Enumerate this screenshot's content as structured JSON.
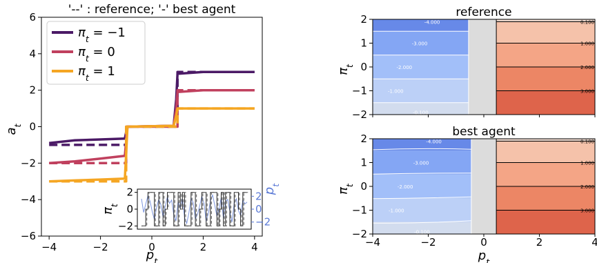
{
  "chart_data": [
    {
      "type": "line",
      "title": "'--' : reference; '-' best agent",
      "xlabel": "p_t",
      "ylabel": "a_t",
      "xlim": [
        -4.3,
        4.3
      ],
      "ylim": [
        -6,
        6
      ],
      "xticks": [
        "-4",
        "-2",
        "0",
        "2",
        "4"
      ],
      "yticks": [
        "-6",
        "-4",
        "-2",
        "0",
        "2",
        "4",
        "6"
      ],
      "legend_position": "top-left",
      "series": [
        {
          "name": "π_t = −1",
          "color": "#4b1a66",
          "best_agent": [
            [
              -4,
              -0.9
            ],
            [
              -3,
              -0.75
            ],
            [
              -2,
              -0.7
            ],
            [
              -1.05,
              -0.65
            ],
            [
              -1.0,
              -0.3
            ],
            [
              -0.95,
              0.0
            ],
            [
              0.85,
              0.05
            ],
            [
              0.95,
              1.5
            ],
            [
              1.0,
              2.9
            ],
            [
              2,
              3.0
            ],
            [
              4,
              3.0
            ]
          ],
          "reference": [
            [
              -4,
              -1.0
            ],
            [
              -1.0,
              -1.0
            ],
            [
              -1.0,
              0.0
            ],
            [
              1.0,
              0.0
            ],
            [
              1.0,
              3.0
            ],
            [
              4,
              3.0
            ]
          ]
        },
        {
          "name": "π_t = 0",
          "color": "#c0405e",
          "best_agent": [
            [
              -4,
              -2.0
            ],
            [
              -3,
              -1.9
            ],
            [
              -2,
              -1.75
            ],
            [
              -1.05,
              -1.6
            ],
            [
              -1.0,
              -0.8
            ],
            [
              -0.95,
              0.0
            ],
            [
              0.85,
              0.05
            ],
            [
              0.95,
              1.0
            ],
            [
              1.0,
              1.9
            ],
            [
              2,
              2.0
            ],
            [
              4,
              2.0
            ]
          ],
          "reference": [
            [
              -4,
              -2.0
            ],
            [
              -1.0,
              -2.0
            ],
            [
              -1.0,
              0.0
            ],
            [
              1.0,
              0.0
            ],
            [
              1.0,
              2.0
            ],
            [
              4,
              2.0
            ]
          ]
        },
        {
          "name": "π_t = 1",
          "color": "#f5a623",
          "best_agent": [
            [
              -4,
              -3.0
            ],
            [
              -3,
              -2.95
            ],
            [
              -2,
              -2.9
            ],
            [
              -1.05,
              -2.85
            ],
            [
              -1.0,
              -1.5
            ],
            [
              -0.95,
              0.0
            ],
            [
              0.85,
              0.05
            ],
            [
              0.95,
              0.6
            ],
            [
              1.0,
              1.0
            ],
            [
              2,
              1.0
            ],
            [
              4,
              1.0
            ]
          ],
          "reference": [
            [
              -4,
              -3.0
            ],
            [
              -1.0,
              -3.0
            ],
            [
              -1.0,
              0.0
            ],
            [
              1.0,
              0.0
            ],
            [
              1.0,
              1.0
            ],
            [
              4,
              1.0
            ]
          ]
        }
      ],
      "inset": {
        "left_label": "π_t",
        "right_label": "p_t",
        "left_ticks": [
          "-2",
          "0",
          "2"
        ],
        "right_ticks": [
          "-2",
          "0",
          "2"
        ],
        "left_ylim": [
          -2.3,
          2.3
        ],
        "right_ylim": [
          -3,
          3
        ],
        "right_color": "#5b7ad6",
        "position_series": [
          -2,
          -2,
          0,
          2,
          2,
          2,
          -2,
          -2,
          2,
          2,
          -2,
          0,
          2,
          2,
          2,
          -2,
          -2,
          2,
          0,
          2,
          -2,
          -2,
          -2,
          2,
          2,
          -2,
          -2,
          0,
          2,
          2,
          -2,
          -2,
          2,
          2,
          2,
          -2,
          0,
          2,
          -2,
          2,
          2,
          -2,
          -2,
          2,
          2,
          0,
          -2,
          2,
          2,
          2
        ],
        "price_series": [
          1.6,
          -0.5,
          0.8,
          2.1,
          1.2,
          -0.4,
          -1.6,
          0.3,
          1.5,
          0.7,
          -1.2,
          0.4,
          1.9,
          0.9,
          1.4,
          -0.9,
          -1.8,
          1.1,
          0.2,
          1.6,
          -1.3,
          -2.2,
          -0.6,
          1.7,
          1.0,
          -1.5,
          -0.8,
          0.5,
          2.0,
          0.9,
          -1.9,
          -0.7,
          1.3,
          2.2,
          0.6,
          -1.1,
          0.1,
          1.8,
          -1.4,
          1.2,
          1.5,
          -0.3,
          -2.0,
          0.9,
          1.6,
          -0.2,
          -1.0,
          1.4,
          0.8,
          1.1
        ]
      }
    },
    {
      "type": "heatmap",
      "title": "reference",
      "ylabel": "π_t",
      "xlim": [
        -4,
        4
      ],
      "ylim": [
        -2,
        2
      ],
      "xticks": [],
      "yticks": [
        "-2",
        "-1",
        "0",
        "1",
        "2"
      ],
      "left_levels": [
        "-4.000",
        "-3.000",
        "-2.000",
        "-1.000",
        "-0.100"
      ],
      "right_levels": [
        "0.100",
        "1.000",
        "2.000",
        "3.000"
      ],
      "left_colors": [
        "#6789e8",
        "#84a6f4",
        "#a2bff9",
        "#bcd0f7",
        "#d2dcee"
      ],
      "right_colors": [
        "#ecd8ce",
        "#f5c2aa",
        "#f4a586",
        "#ec8665",
        "#de644b"
      ],
      "neutral_color": "#dcdcdc",
      "left_boundary": -0.5,
      "right_boundary": 0.5
    },
    {
      "type": "heatmap",
      "title": "best agent",
      "xlabel": "p_t",
      "ylabel": "π_t",
      "xlim": [
        -4,
        4
      ],
      "ylim": [
        -2,
        2
      ],
      "xticks": [
        "-4",
        "-2",
        "0",
        "2",
        "4"
      ],
      "yticks": [
        "-2",
        "-1",
        "0",
        "1",
        "2"
      ],
      "left_levels": [
        "-4.000",
        "-3.000",
        "-2.000",
        "-1.000",
        "-0.100"
      ],
      "right_levels": [
        "0.100",
        "1.000",
        "2.000",
        "3.000"
      ],
      "left_colors": [
        "#6789e8",
        "#84a6f4",
        "#a2bff9",
        "#bcd0f7",
        "#d2dcee"
      ],
      "right_colors": [
        "#ecd8ce",
        "#f5c2aa",
        "#f4a586",
        "#ec8665",
        "#de644b"
      ],
      "neutral_color": "#dcdcdc"
    }
  ]
}
